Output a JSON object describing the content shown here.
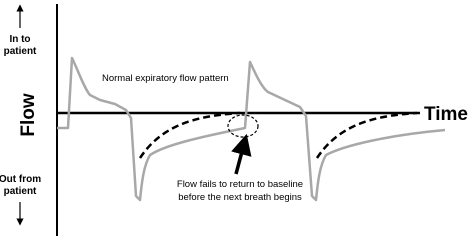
{
  "axes": {
    "y_title": "Flow",
    "x_title": "Time",
    "y_positive": [
      "In to",
      "patient"
    ],
    "y_negative": [
      "Out from",
      "patient"
    ]
  },
  "annotations": {
    "normal": "Normal expiratory flow pattern",
    "failure": [
      "Flow fails to return to baseline",
      "before the next breath begins"
    ]
  }
}
